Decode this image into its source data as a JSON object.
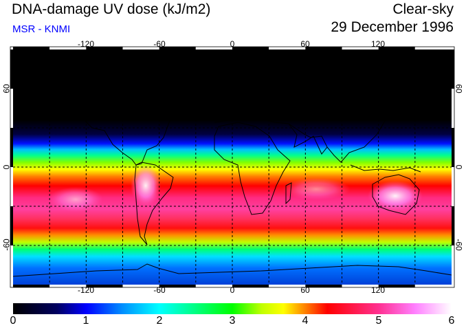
{
  "header": {
    "title": "DNA-damage UV dose (kJ/m2)",
    "source": "MSR - KNMI",
    "condition": "Clear-sky",
    "date": "29 December 1996"
  },
  "colors": {
    "source_text": "#0000ff",
    "ocean_night": "#000000",
    "land_outline": "#000000",
    "gridline": "#000000"
  },
  "map": {
    "projection": "equirectangular",
    "lon_range": [
      -180,
      180
    ],
    "lat_range": [
      -90,
      90
    ],
    "grid_lons": [
      -150,
      -120,
      -90,
      -60,
      -30,
      0,
      30,
      60,
      90,
      120,
      150
    ],
    "grid_lats": [
      -60,
      -30,
      0,
      30,
      60
    ],
    "gridline_style": "dashed"
  },
  "axes": {
    "lon_ticks_top": [
      "-120",
      "-60",
      "0",
      "60",
      "120"
    ],
    "lon_ticks_bottom": [
      "-120",
      "-60",
      "0",
      "60",
      "120"
    ],
    "lat_ticks_left": [
      "60",
      "0",
      "-60"
    ],
    "lat_ticks_right": [
      "60",
      "0",
      "-60"
    ]
  },
  "colorbar": {
    "min": 0,
    "max": 6,
    "labels": [
      "0",
      "1",
      "2",
      "3",
      "4",
      "5",
      "6"
    ],
    "stops": [
      {
        "value": 0.0,
        "color": "#000000"
      },
      {
        "value": 0.6,
        "color": "#000060"
      },
      {
        "value": 1.0,
        "color": "#0000ff"
      },
      {
        "value": 1.5,
        "color": "#0090ff"
      },
      {
        "value": 2.0,
        "color": "#00ffff"
      },
      {
        "value": 2.5,
        "color": "#00ff80"
      },
      {
        "value": 3.0,
        "color": "#00ff00"
      },
      {
        "value": 3.4,
        "color": "#c0ff00"
      },
      {
        "value": 3.7,
        "color": "#ffff00"
      },
      {
        "value": 4.0,
        "color": "#ff8000"
      },
      {
        "value": 4.3,
        "color": "#ff0000"
      },
      {
        "value": 5.0,
        "color": "#ff3090"
      },
      {
        "value": 5.5,
        "color": "#ff80ff"
      },
      {
        "value": 6.0,
        "color": "#ffffff"
      }
    ]
  }
}
